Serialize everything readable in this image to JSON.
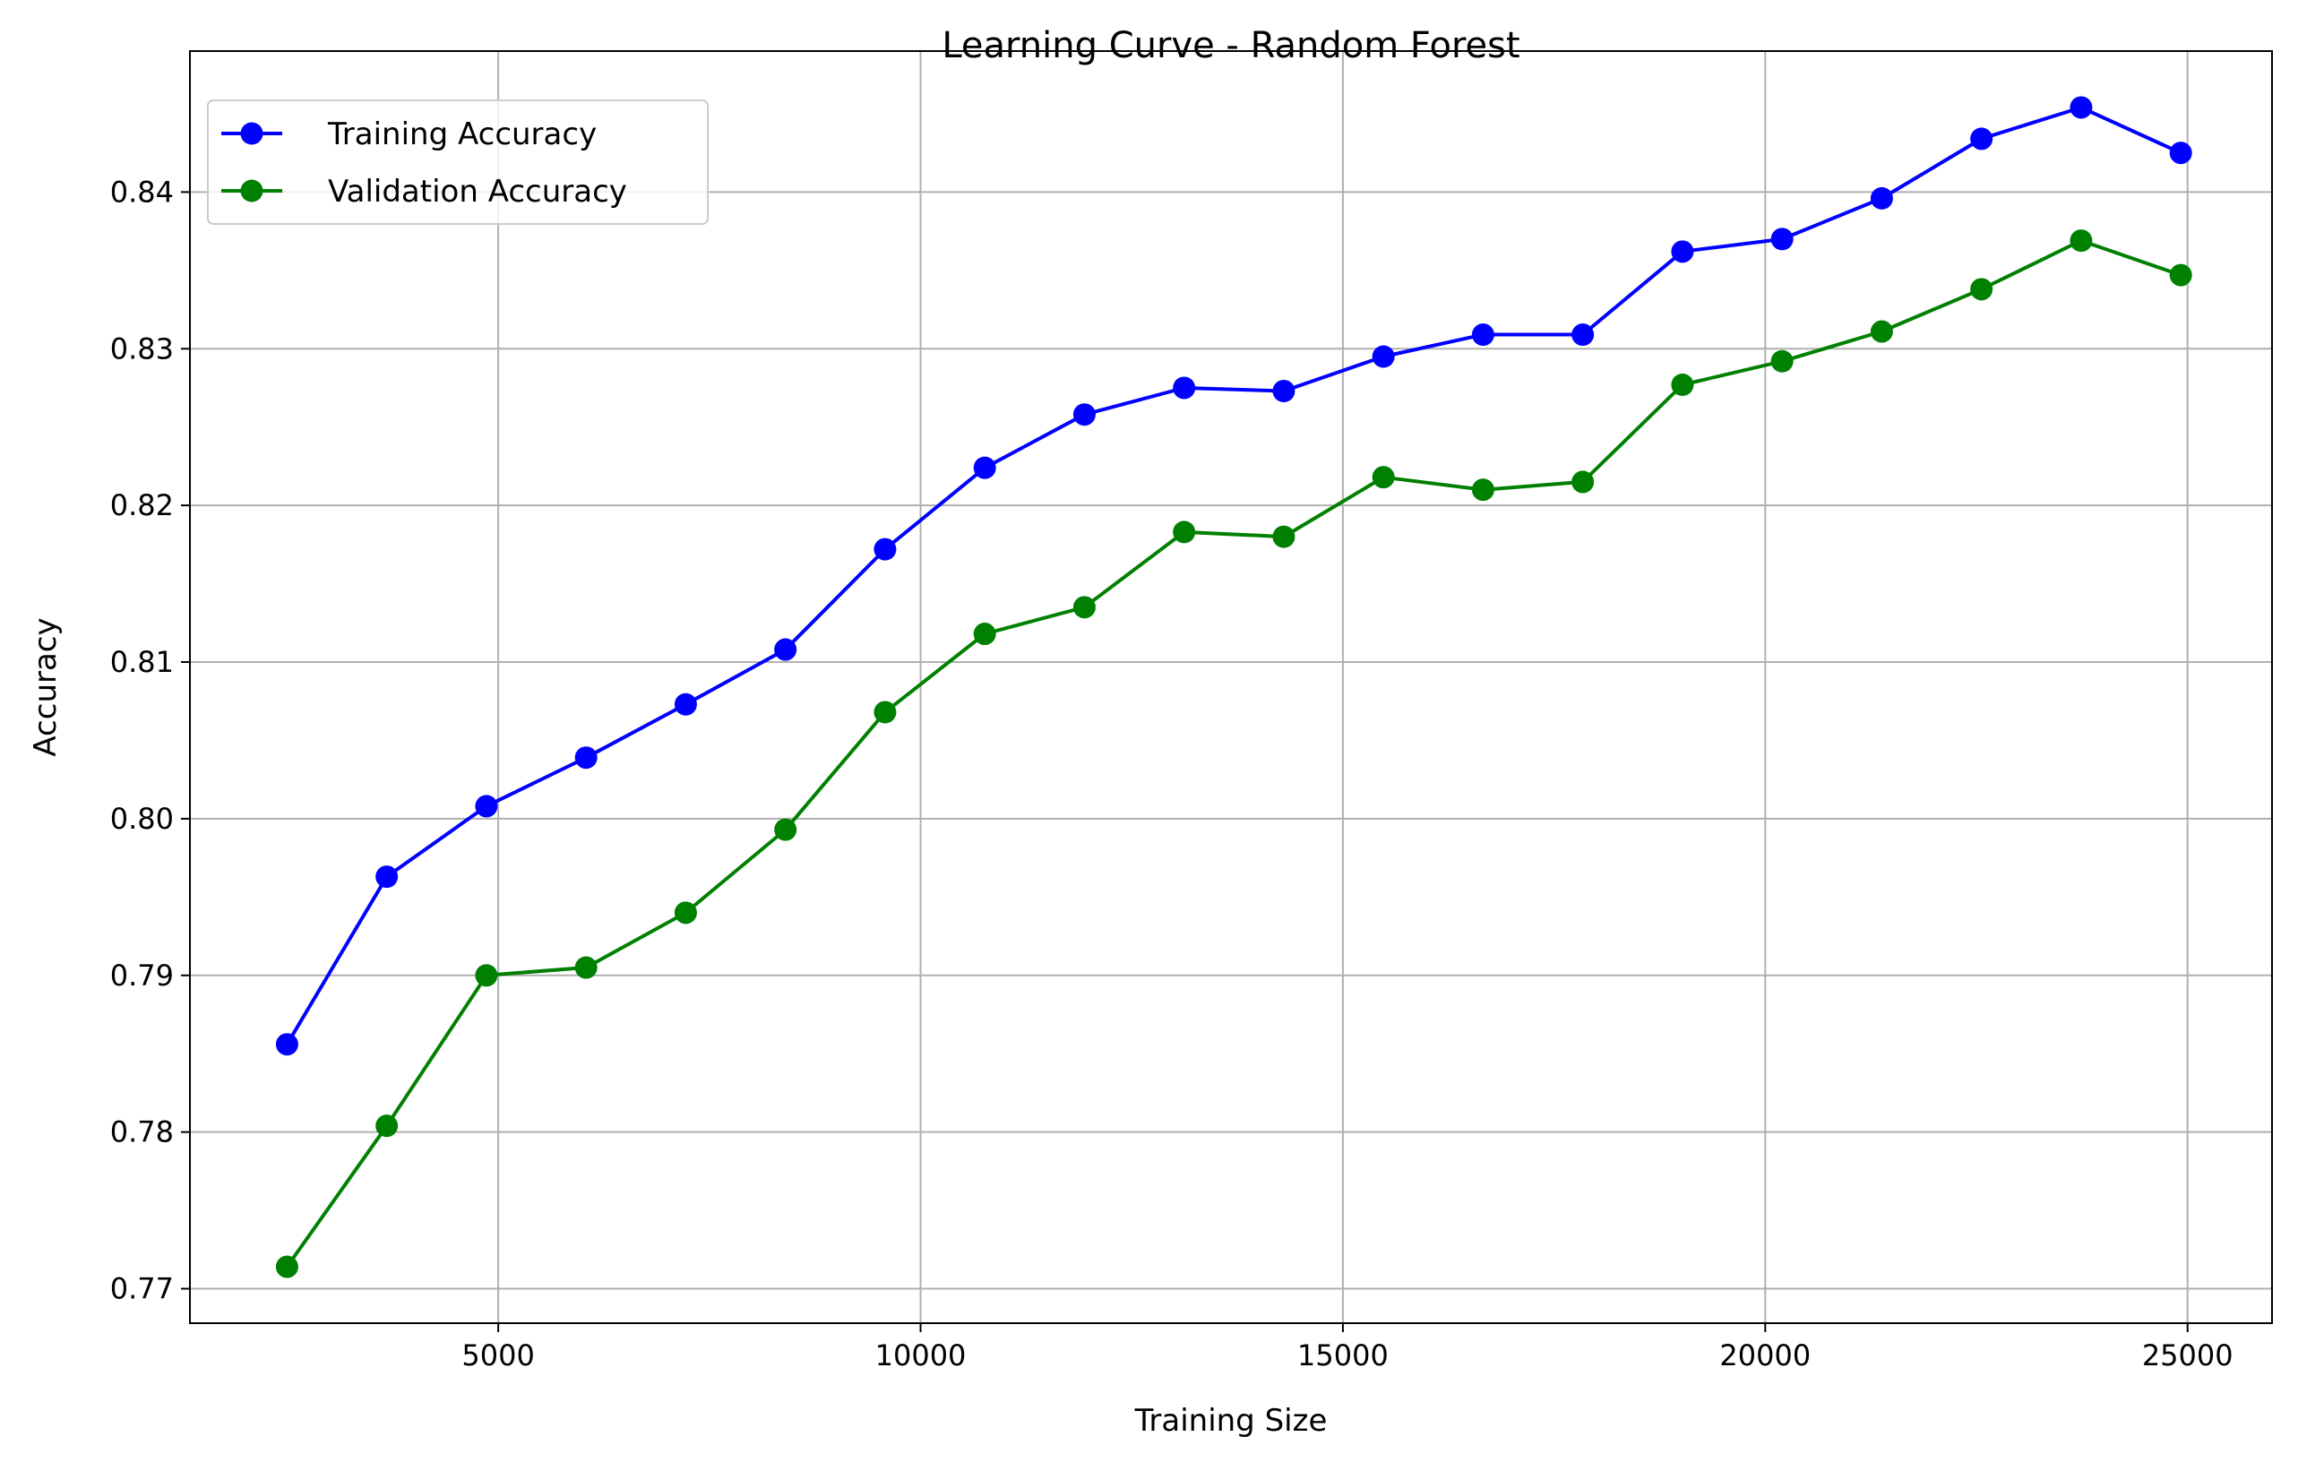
{
  "chart_data": {
    "type": "line",
    "title": "Learning Curve - Random Forest",
    "xlabel": "Training Size",
    "ylabel": "Accuracy",
    "xlim": [
      1350,
      26000
    ],
    "ylim": [
      0.7678,
      0.849
    ],
    "xticks": [
      5000,
      10000,
      15000,
      20000,
      25000
    ],
    "xtick_labels": [
      "5000",
      "10000",
      "15000",
      "20000",
      "25000"
    ],
    "yticks": [
      0.77,
      0.78,
      0.79,
      0.8,
      0.81,
      0.82,
      0.83,
      0.84
    ],
    "ytick_labels": [
      "0.77",
      "0.78",
      "0.79",
      "0.80",
      "0.81",
      "0.82",
      "0.83",
      "0.84"
    ],
    "grid": true,
    "legend_position": "upper-left",
    "x": [
      2500,
      3680,
      4860,
      6040,
      7220,
      8400,
      9580,
      10760,
      11940,
      13120,
      14300,
      15480,
      16660,
      17840,
      19020,
      20200,
      21380,
      22560,
      23740,
      24920
    ],
    "series": [
      {
        "name": "Training Accuracy",
        "color": "#0000ff",
        "marker": "circle",
        "values": [
          0.7856,
          0.7963,
          0.8008,
          0.8039,
          0.8073,
          0.8108,
          0.8172,
          0.8224,
          0.8258,
          0.8275,
          0.8273,
          0.8295,
          0.8309,
          0.8309,
          0.8362,
          0.837,
          0.8396,
          0.8434,
          0.8454,
          0.8425
        ]
      },
      {
        "name": "Validation Accuracy",
        "color": "#008000",
        "marker": "circle",
        "values": [
          0.7714,
          0.7804,
          0.79,
          0.7905,
          0.794,
          0.7993,
          0.8068,
          0.8118,
          0.8135,
          0.8183,
          0.818,
          0.8218,
          0.821,
          0.8215,
          0.8277,
          0.8292,
          0.8311,
          0.8338,
          0.8369,
          0.8347
        ]
      }
    ]
  }
}
